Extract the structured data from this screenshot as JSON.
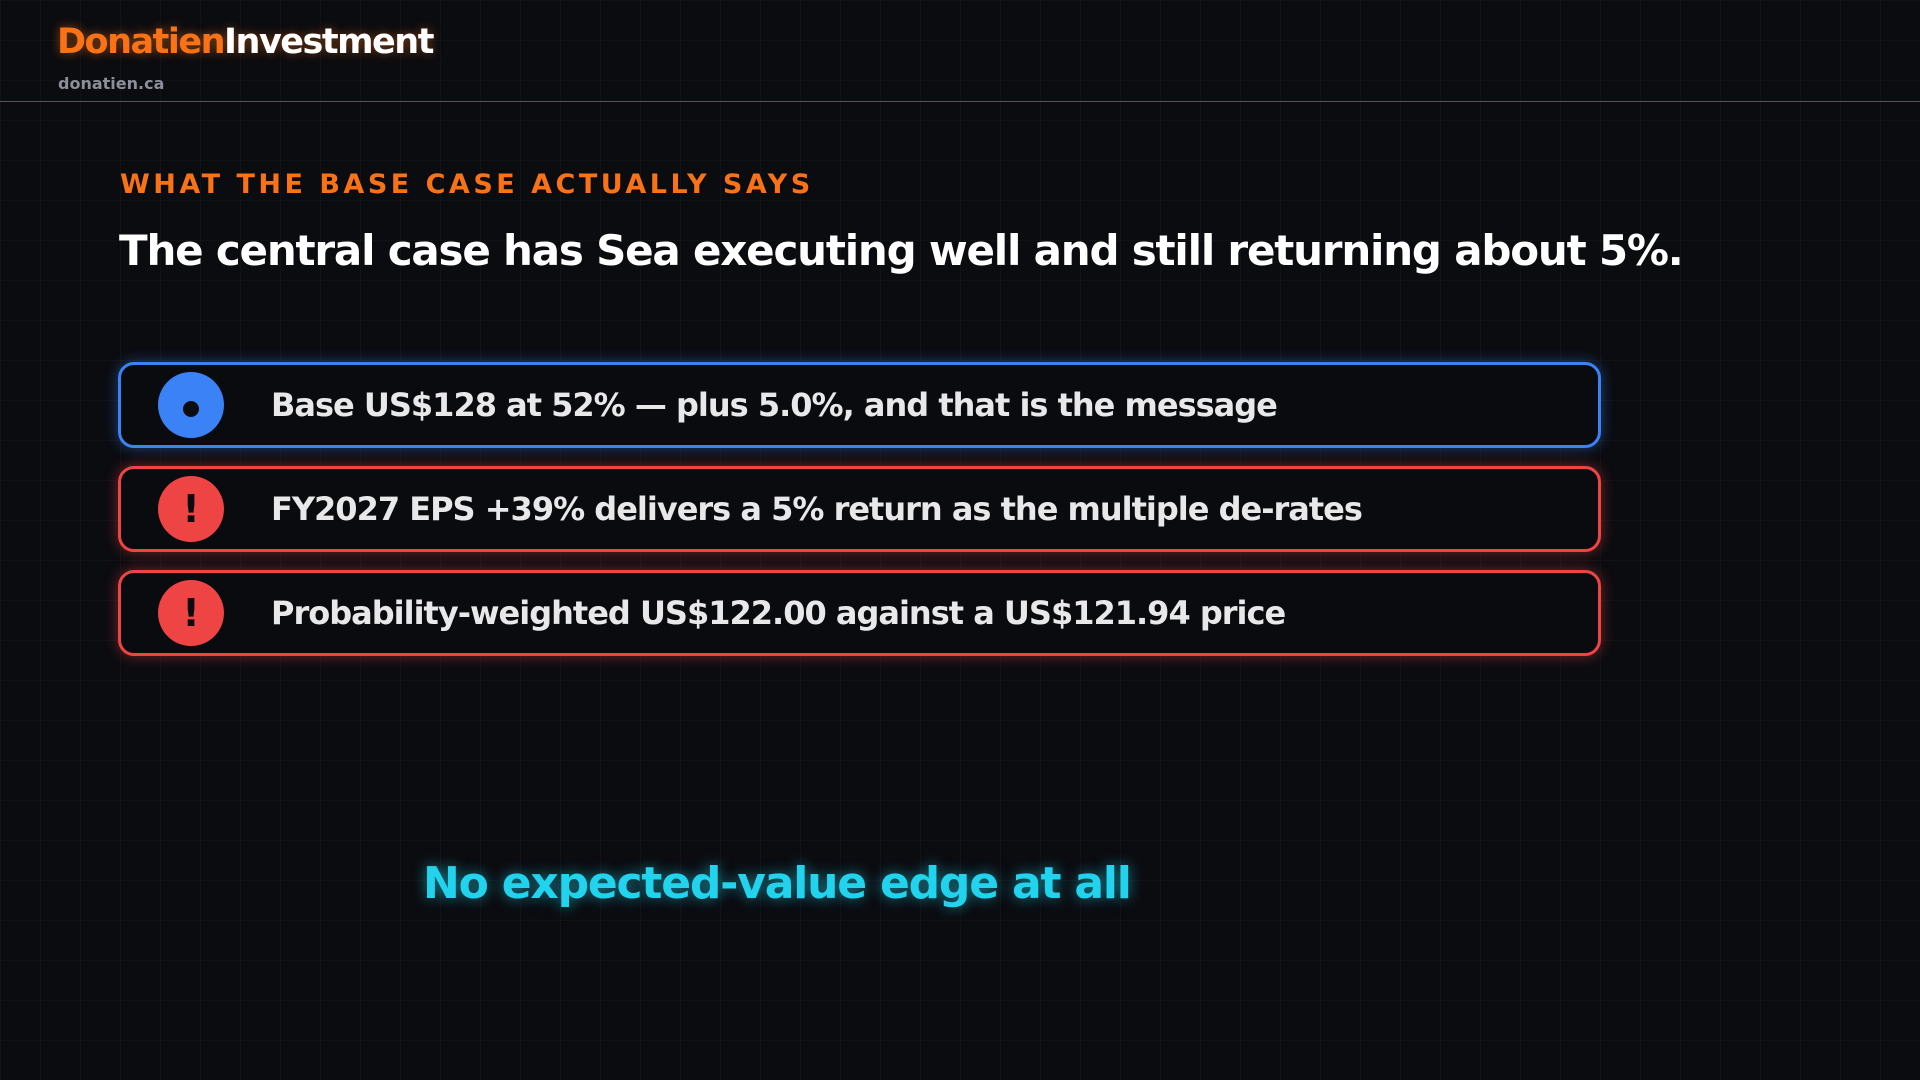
{
  "header": {
    "brand_part1": "Donatien",
    "brand_part2": "Investment",
    "domain": "donatien.ca"
  },
  "slide": {
    "eyebrow": "WHAT THE BASE CASE ACTUALLY SAYS",
    "headline": "The central case has Sea executing well and still returning about 5%.",
    "cards": [
      {
        "icon": "dot-icon",
        "accent": "#3b82f6",
        "text": "Base US$128 at 52% — plus 5.0%, and that is the message"
      },
      {
        "icon": "exclamation-icon",
        "accent": "#ef4444",
        "icon_glyph": "!",
        "text": "FY2027 EPS +39% delivers a 5% return as the multiple de-rates"
      },
      {
        "icon": "exclamation-icon",
        "accent": "#ef4444",
        "icon_glyph": "!",
        "text": "Probability-weighted US$122.00 against a US$121.94 price"
      }
    ],
    "conclusion": "No expected-value edge at all"
  },
  "colors": {
    "brand_orange": "#f97316",
    "info_blue": "#3b82f6",
    "warning_red": "#ef4444",
    "conclusion_cyan": "#22d3ee",
    "background": "#0b0c10"
  }
}
